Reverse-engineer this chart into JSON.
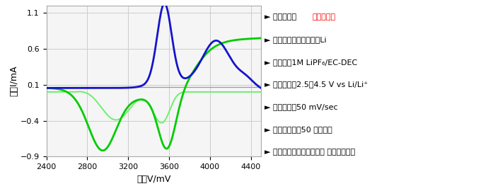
{
  "xlim": [
    2400,
    4500
  ],
  "ylim": [
    -0.9,
    1.2
  ],
  "xticks": [
    2400,
    2800,
    3200,
    3600,
    4000,
    4400
  ],
  "yticks": [
    -0.9,
    -0.4,
    0.1,
    0.6,
    1.1
  ],
  "xlabel": "電位V/mV",
  "ylabel": "電流I/mA",
  "blue_color": "#1414cc",
  "green_dark_color": "#00cc00",
  "green_light_color": "#66ee66",
  "hline_y": 0.065,
  "hline_color": "#999999",
  "grid_color": "#cccccc",
  "bg_color": "#f5f5f5",
  "annotation_lines_black": [
    "► 作用電極：",
    "► 参照電極、対極：金屛Li",
    "► 電解液：1M LiPF₆/EC-DEC",
    "► 走査電位：2.5～4.5 V vs Li/Li⁺",
    "► 掃引速度：50 mV/sec",
    "► サイクル数：50 サイクル",
    "► 測定協力：国立大学法人 横浜国立大学"
  ],
  "annotation_red": "当社材塗膜",
  "font_size_annot": 8.0
}
